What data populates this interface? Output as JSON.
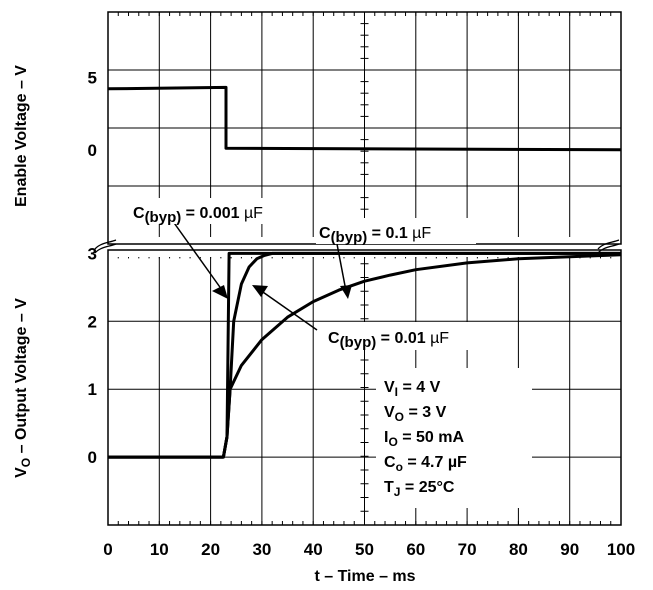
{
  "chart_data": {
    "type": "line",
    "xlabel": "t – Time – ms",
    "xlim": [
      0,
      100
    ],
    "x_ticks": [
      "0",
      "10",
      "20",
      "30",
      "40",
      "50",
      "60",
      "70",
      "80",
      "90",
      "100"
    ],
    "x_tick_values": [
      0,
      10,
      20,
      30,
      40,
      50,
      60,
      70,
      80,
      90,
      100
    ],
    "grid": true,
    "enable_panel": {
      "ylabel": "Enable Voltage – V",
      "y_ticks": [
        "5",
        "0"
      ],
      "y_tick_values": [
        5,
        0
      ],
      "ylim": [
        -6.5,
        9.5
      ],
      "series": [
        {
          "x": [
            0,
            23,
            23,
            100
          ],
          "y": [
            4.2,
            4.3,
            0.1,
            0
          ]
        }
      ]
    },
    "output_panel": {
      "ylabel_prefix": "V",
      "ylabel_subscript": "O",
      "ylabel_suffix": " – Output Voltage – V",
      "y_ticks": [
        "3",
        "2",
        "1",
        "0"
      ],
      "y_tick_values": [
        3,
        2,
        1,
        0
      ],
      "ylim": [
        -1,
        3.05
      ],
      "series": [
        {
          "x": [
            0,
            22.5,
            23.2,
            23.6,
            24.5,
            100
          ],
          "y": [
            0,
            0,
            0.3,
            3.0,
            3.0,
            3.0
          ]
        },
        {
          "x": [
            0,
            22.5,
            23.2,
            23.8,
            24.5,
            26,
            27.5,
            29,
            30.5,
            32,
            100
          ],
          "y": [
            0,
            0,
            0.3,
            1.0,
            2.0,
            2.55,
            2.8,
            2.92,
            2.97,
            3.0,
            3.0
          ]
        },
        {
          "x": [
            0,
            22.5,
            23.2,
            23.8,
            26,
            30,
            35,
            40,
            45,
            50,
            55,
            60,
            70,
            80,
            90,
            100
          ],
          "y": [
            0,
            0,
            0.3,
            1.0,
            1.35,
            1.73,
            2.06,
            2.29,
            2.46,
            2.59,
            2.68,
            2.76,
            2.86,
            2.92,
            2.95,
            2.98
          ]
        }
      ]
    },
    "annotations": [
      {
        "prefix": "C",
        "subscript": "(byp)",
        "suffix": " = 0.001 ",
        "unit": "µF"
      },
      {
        "prefix": "C",
        "subscript": "(byp)",
        "suffix": " = 0.1 ",
        "unit": "µF"
      },
      {
        "prefix": "C",
        "subscript": "(byp)",
        "suffix": " = 0.01 ",
        "unit": "µF"
      }
    ],
    "conditions": [
      {
        "prefix": "V",
        "subscript": "I",
        "suffix": " = 4 V"
      },
      {
        "prefix": "V",
        "subscript": "O",
        "suffix": " = 3 V"
      },
      {
        "prefix": "I",
        "subscript": "O",
        "suffix": " = 50 mA"
      },
      {
        "prefix": "C",
        "subscript": "o",
        "suffix": " = 4.7 µF"
      },
      {
        "prefix": "T",
        "subscript": "J",
        "suffix": " = 25°C"
      }
    ]
  }
}
